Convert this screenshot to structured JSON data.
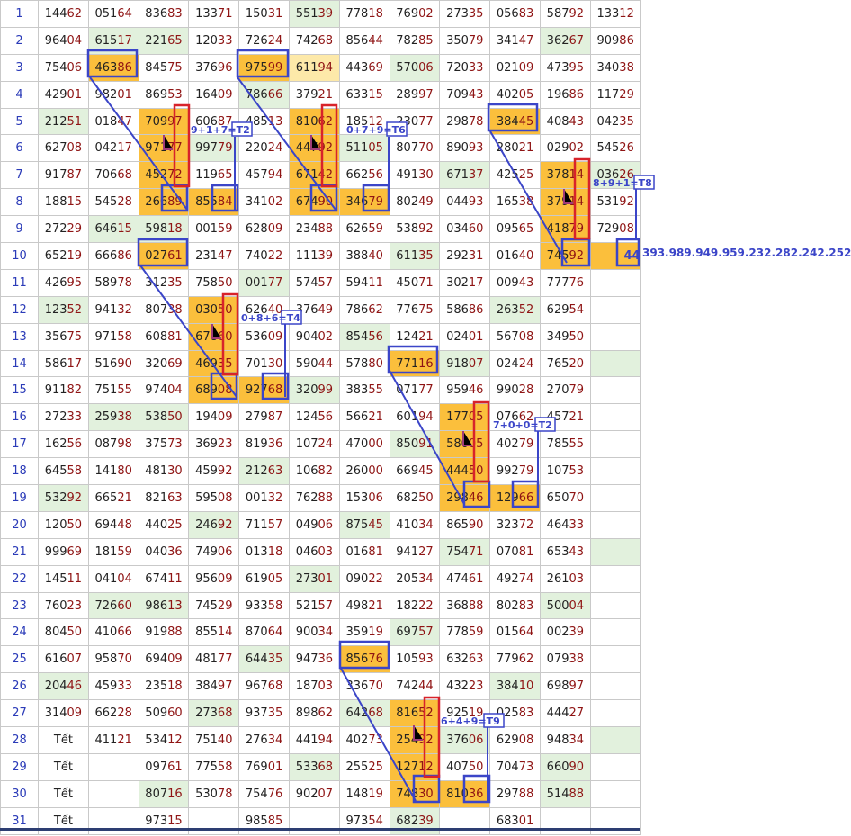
{
  "colors": {
    "green": "#e2f1dd",
    "orange": "#fbbf3c",
    "yellow": "#fde9a9",
    "blue": "#3b45c8",
    "red": "#d8232a"
  },
  "rows": [
    {
      "n": "1",
      "cells": [
        "14462",
        "05164",
        "83683",
        "13371",
        "15031",
        "55139",
        "77818",
        "76902",
        "27335",
        "05683",
        "58792",
        "13312"
      ],
      "bg": {
        "5": "green"
      }
    },
    {
      "n": "2",
      "cells": [
        "96404",
        "61517",
        "22165",
        "12033",
        "72624",
        "74268",
        "85644",
        "78285",
        "35079",
        "34147",
        "36267",
        "90986"
      ],
      "bg": {
        "1": "green",
        "2": "green",
        "10": "green"
      }
    },
    {
      "n": "3",
      "cells": [
        "75406",
        "46386",
        "84575",
        "37696",
        "97599",
        "61194",
        "44369",
        "57006",
        "72033",
        "02109",
        "47395",
        "34038"
      ],
      "bg": {
        "1": "orange",
        "4": "orange",
        "5": "yellow",
        "7": "green"
      }
    },
    {
      "n": "4",
      "cells": [
        "42901",
        "98201",
        "86953",
        "16409",
        "78666",
        "37921",
        "63315",
        "28997",
        "70943",
        "40205",
        "19686",
        "11729"
      ],
      "bg": {
        "4": "green"
      }
    },
    {
      "n": "5",
      "cells": [
        "21251",
        "01847",
        "70997",
        "60687",
        "48513",
        "81062",
        "18512",
        "23077",
        "29878",
        "38445",
        "40843",
        "04235"
      ],
      "bg": {
        "0": "green",
        "2": "orange",
        "5": "orange",
        "9": "orange"
      }
    },
    {
      "n": "6",
      "cells": [
        "62708",
        "04217",
        "97177",
        "99779",
        "22024",
        "44792",
        "51105",
        "80770",
        "89093",
        "28021",
        "02902",
        "54526"
      ],
      "bg": {
        "2": "orange",
        "3": "green",
        "5": "orange",
        "6": "green"
      }
    },
    {
      "n": "7",
      "cells": [
        "91787",
        "70668",
        "45272",
        "11965",
        "45794",
        "67142",
        "66256",
        "49130",
        "67137",
        "42525",
        "37814",
        "03626"
      ],
      "bg": {
        "2": "orange",
        "5": "orange",
        "8": "green",
        "10": "orange",
        "11": "green"
      }
    },
    {
      "n": "8",
      "cells": [
        "18815",
        "54528",
        "26689",
        "85584",
        "34102",
        "67490",
        "34679",
        "80249",
        "04493",
        "16538",
        "37914",
        "53192"
      ],
      "bg": {
        "2": "orange",
        "3": "orange",
        "5": "orange",
        "6": "orange",
        "10": "orange"
      }
    },
    {
      "n": "9",
      "cells": [
        "27229",
        "64615",
        "59818",
        "00159",
        "62809",
        "23488",
        "62659",
        "53892",
        "03460",
        "09565",
        "41879",
        "72908"
      ],
      "bg": {
        "1": "green",
        "2": "green",
        "10": "orange"
      }
    },
    {
      "n": "10",
      "cells": [
        "65219",
        "66686",
        "02761",
        "23147",
        "74022",
        "11139",
        "38840",
        "61135",
        "29231",
        "01640",
        "74592",
        "44"
      ],
      "bg": {
        "2": "orange",
        "7": "green",
        "10": "orange",
        "11": "orange"
      }
    },
    {
      "n": "11",
      "cells": [
        "42695",
        "58978",
        "31235",
        "75850",
        "00177",
        "57457",
        "59411",
        "45071",
        "30217",
        "00943",
        "77776",
        ""
      ],
      "bg": {
        "4": "green"
      }
    },
    {
      "n": "12",
      "cells": [
        "12352",
        "94132",
        "80738",
        "03050",
        "62640",
        "37649",
        "78662",
        "77675",
        "58686",
        "26352",
        "62954",
        ""
      ],
      "bg": {
        "0": "green",
        "3": "orange",
        "9": "green"
      }
    },
    {
      "n": "13",
      "cells": [
        "35675",
        "97158",
        "60881",
        "67860",
        "53609",
        "90402",
        "85456",
        "12421",
        "02401",
        "56708",
        "34950",
        ""
      ],
      "bg": {
        "3": "orange",
        "6": "green"
      }
    },
    {
      "n": "14",
      "cells": [
        "58617",
        "51690",
        "32069",
        "46935",
        "70130",
        "59044",
        "57880",
        "77116",
        "91807",
        "02424",
        "76520",
        ""
      ],
      "bg": {
        "3": "orange",
        "7": "orange",
        "8": "green",
        "11": "green"
      }
    },
    {
      "n": "15",
      "cells": [
        "91182",
        "75155",
        "97404",
        "68908",
        "92768",
        "32099",
        "38355",
        "07177",
        "95946",
        "99028",
        "27079",
        ""
      ],
      "bg": {
        "3": "orange",
        "4": "orange",
        "5": "green"
      }
    },
    {
      "n": "16",
      "cells": [
        "27233",
        "25938",
        "53850",
        "19409",
        "27987",
        "12456",
        "56621",
        "60194",
        "17705",
        "07662",
        "45721",
        ""
      ],
      "bg": {
        "1": "green",
        "2": "green",
        "8": "orange"
      }
    },
    {
      "n": "17",
      "cells": [
        "16256",
        "08798",
        "37573",
        "36923",
        "81936",
        "10724",
        "47000",
        "85091",
        "58005",
        "40279",
        "78555",
        ""
      ],
      "bg": {
        "7": "green",
        "8": "orange"
      }
    },
    {
      "n": "18",
      "cells": [
        "64558",
        "14180",
        "48130",
        "45992",
        "21263",
        "10682",
        "26000",
        "66945",
        "44450",
        "99279",
        "10753",
        ""
      ],
      "bg": {
        "4": "green",
        "8": "orange"
      }
    },
    {
      "n": "19",
      "cells": [
        "53292",
        "66521",
        "82163",
        "59508",
        "00132",
        "76288",
        "15306",
        "68250",
        "29846",
        "12966",
        "65070",
        ""
      ],
      "bg": {
        "0": "green",
        "8": "orange",
        "9": "orange"
      }
    },
    {
      "n": "20",
      "cells": [
        "12050",
        "69448",
        "44025",
        "24692",
        "71157",
        "04906",
        "87545",
        "41034",
        "86590",
        "32372",
        "46433",
        ""
      ],
      "bg": {
        "3": "green",
        "6": "green"
      }
    },
    {
      "n": "21",
      "cells": [
        "99969",
        "18159",
        "04036",
        "74906",
        "01318",
        "04603",
        "01681",
        "94127",
        "75471",
        "07081",
        "65343",
        ""
      ],
      "bg": {
        "8": "green",
        "11": "green"
      }
    },
    {
      "n": "22",
      "cells": [
        "14511",
        "04104",
        "67411",
        "95609",
        "61905",
        "27301",
        "09022",
        "20534",
        "47461",
        "49274",
        "26103",
        ""
      ],
      "bg": {
        "5": "green"
      }
    },
    {
      "n": "23",
      "cells": [
        "76023",
        "72660",
        "98613",
        "74529",
        "93358",
        "52157",
        "49821",
        "18222",
        "36888",
        "80283",
        "50004",
        ""
      ],
      "bg": {
        "1": "green",
        "2": "green",
        "10": "green"
      }
    },
    {
      "n": "24",
      "cells": [
        "80450",
        "41066",
        "91988",
        "85514",
        "87064",
        "90034",
        "35919",
        "69757",
        "77859",
        "01564",
        "00239",
        ""
      ],
      "bg": {
        "7": "green"
      }
    },
    {
      "n": "25",
      "cells": [
        "61607",
        "95870",
        "69409",
        "48177",
        "64435",
        "94736",
        "85676",
        "10593",
        "63263",
        "77962",
        "07938",
        ""
      ],
      "bg": {
        "4": "green",
        "6": "orange"
      }
    },
    {
      "n": "26",
      "cells": [
        "20446",
        "45933",
        "23518",
        "38497",
        "96768",
        "18703",
        "33670",
        "74244",
        "43223",
        "38410",
        "69897",
        ""
      ],
      "bg": {
        "0": "green",
        "9": "green"
      }
    },
    {
      "n": "27",
      "cells": [
        "31409",
        "66228",
        "50960",
        "27368",
        "93735",
        "89862",
        "64268",
        "81652",
        "92519",
        "02583",
        "44427",
        ""
      ],
      "bg": {
        "3": "green",
        "6": "green",
        "7": "orange"
      }
    },
    {
      "n": "28",
      "cells": [
        "Tết",
        "41121",
        "53412",
        "75140",
        "27634",
        "44194",
        "40273",
        "25492",
        "37606",
        "62908",
        "94834",
        ""
      ],
      "bg": {
        "7": "orange",
        "8": "green",
        "11": "green"
      }
    },
    {
      "n": "29",
      "cells": [
        "Tết",
        "",
        "09761",
        "77558",
        "76901",
        "53368",
        "25525",
        "12712",
        "40750",
        "70473",
        "66090",
        ""
      ],
      "bg": {
        "5": "green",
        "7": "orange",
        "10": "green"
      }
    },
    {
      "n": "30",
      "cells": [
        "Tết",
        "",
        "80716",
        "53078",
        "75476",
        "90207",
        "14819",
        "74830",
        "81036",
        "29788",
        "51488",
        ""
      ],
      "bg": {
        "2": "green",
        "7": "orange",
        "8": "orange",
        "10": "green"
      }
    },
    {
      "n": "31",
      "cells": [
        "Tết",
        "",
        "97315",
        "",
        "98585",
        "",
        "97354",
        "68239",
        "",
        "68301",
        "",
        ""
      ],
      "bg": {
        "7": "green"
      }
    }
  ],
  "annotations": {
    "t2_top": "9+1+7=T2",
    "t6": "0+7+9=T6",
    "t8": "8+9+1=T8",
    "t4": "0+8+6=T4",
    "t2_mid": "7+0+0=T2",
    "t9": "6+4+9=T9",
    "side_note": "393.989.949.959.232.282.242.252"
  }
}
